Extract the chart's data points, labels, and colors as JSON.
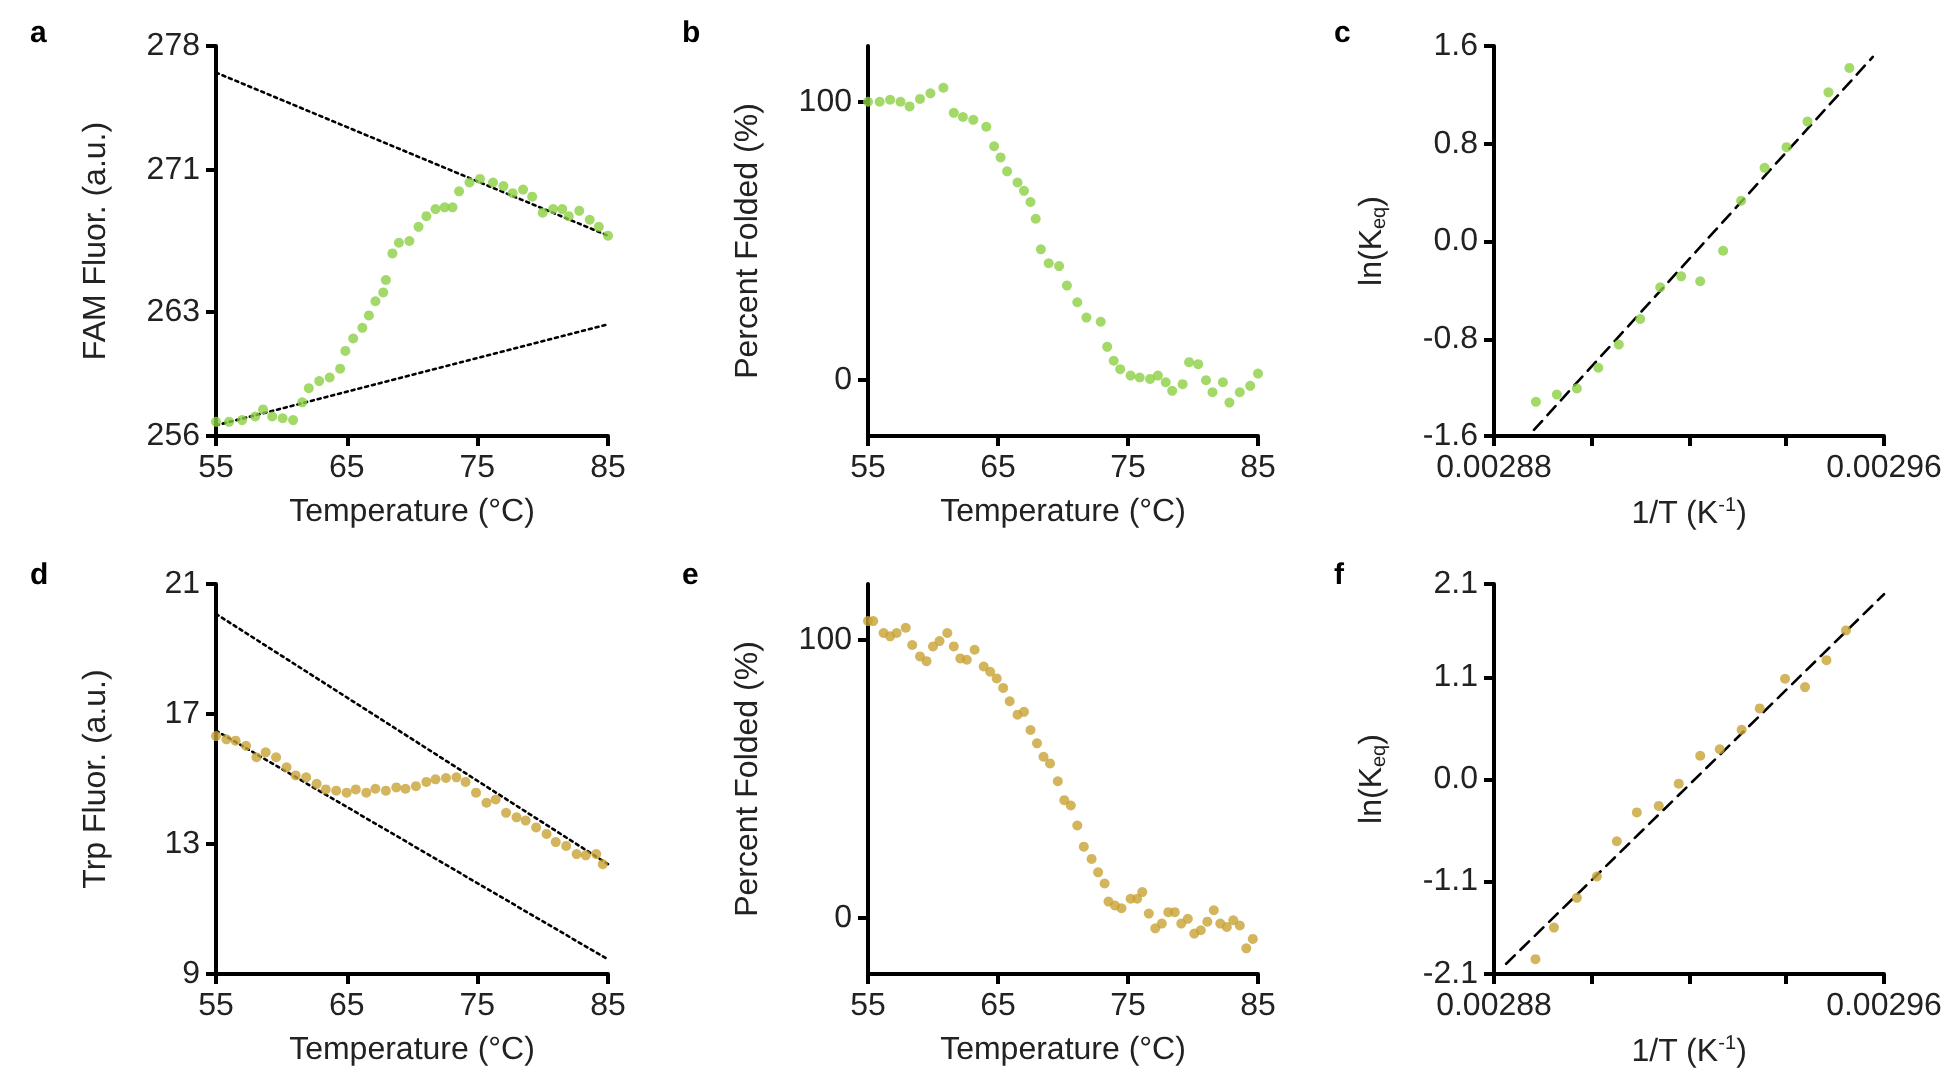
{
  "chart_data": [
    {
      "type": "scatter",
      "title": "a",
      "xlabel": "Temperature (°C)",
      "ylabel": "FAM Fluor. (a.u.)",
      "xlim": [
        55,
        85
      ],
      "ylim": [
        256,
        278
      ],
      "xticks": [
        55,
        65,
        75,
        85
      ],
      "yticks": [
        256,
        263,
        271,
        278
      ],
      "marker": "circle",
      "series": [
        {
          "color": "#8cd044",
          "x": [
            55,
            56,
            57,
            58,
            58.6,
            59.3,
            60.1,
            60.9,
            61.6,
            62.1,
            62.9,
            63.7,
            64.5,
            64.9,
            65.5,
            66.2,
            66.7,
            67.2,
            67.8,
            68,
            68.5,
            69,
            69.8,
            70.5,
            71.1,
            71.8,
            72.5,
            73.1,
            73.6,
            74.4,
            75.2,
            76.2,
            77,
            77.7,
            78.5,
            79.2,
            80,
            80.8,
            81.5,
            82,
            82.8,
            83.6,
            84.3,
            85
          ],
          "values": [
            256.8,
            256.8,
            256.9,
            257.1,
            257.5,
            257.1,
            257,
            256.9,
            257.9,
            258.7,
            259.1,
            259.3,
            259.8,
            260.8,
            261.5,
            262.1,
            262.8,
            263.6,
            264.1,
            264.8,
            266.3,
            266.9,
            267,
            267.8,
            268.4,
            268.8,
            268.9,
            268.9,
            269.8,
            270.3,
            270.5,
            270.3,
            270.1,
            269.7,
            269.9,
            269.5,
            268.6,
            268.8,
            268.8,
            268.4,
            268.7,
            268.2,
            267.8,
            267.3
          ]
        },
        {
          "type": "line",
          "marker": "none",
          "line_style": "dotted",
          "color": "#000000",
          "x": [
            55,
            85
          ],
          "values": [
            276.5,
            267.3
          ]
        },
        {
          "type": "line",
          "marker": "none",
          "line_style": "dotted",
          "color": "#000000",
          "x": [
            55,
            85
          ],
          "values": [
            256.6,
            262.3
          ]
        }
      ]
    },
    {
      "type": "scatter",
      "title": "b",
      "xlabel": "Temperature (°C)",
      "ylabel": "Percent Folded (%)",
      "xlim": [
        55,
        85
      ],
      "ylim": [
        -20,
        120
      ],
      "xticks": [
        55,
        65,
        75,
        85
      ],
      "yticks": [
        0,
        100
      ],
      "marker": "circle",
      "series": [
        {
          "color": "#8cd044",
          "x": [
            55,
            55.9,
            56.7,
            57.5,
            58.2,
            59,
            59.8,
            60.8,
            61.6,
            62.3,
            63.1,
            64.1,
            64.7,
            65.2,
            65.7,
            66.5,
            67,
            67.5,
            67.9,
            68.3,
            68.9,
            69.7,
            70.3,
            71.1,
            71.8,
            72.9,
            73.4,
            73.9,
            74.4,
            75.2,
            75.9,
            76.7,
            77.3,
            77.9,
            78.4,
            79.2,
            79.7,
            80.4,
            81,
            81.5,
            82.3,
            82.8,
            83.6,
            84.4,
            85
          ],
          "values": [
            100,
            100,
            100.7,
            100,
            98.3,
            101,
            103,
            105,
            96,
            94.5,
            93.5,
            91,
            84,
            80,
            75,
            71,
            68,
            64,
            58,
            47,
            42,
            41,
            34,
            28,
            22.5,
            21,
            12,
            7,
            4,
            1.7,
            1,
            0.5,
            1.7,
            -0.7,
            -3.8,
            -1.4,
            6.5,
            5.8,
            0,
            -4.3,
            -0.7,
            -8,
            -4.3,
            -2,
            2.4
          ]
        }
      ]
    },
    {
      "type": "scatter",
      "title": "c",
      "xlabel": "1/T (K$^{-1}$)",
      "ylabel": "ln(K$_{eq}$)",
      "xlim": [
        0.00288,
        0.00296
      ],
      "ylim": [
        -1.6,
        1.6
      ],
      "xticks": [
        0.00288,
        {
          "value": 0.0029,
          "label": null
        },
        {
          "value": 0.00292,
          "label": null
        },
        {
          "value": 0.00294,
          "label": null
        },
        0.00296
      ],
      "yticks": [
        -1.6,
        -0.8,
        {
          "value": 0,
          "label": "0.0"
        },
        0.8,
        1.6
      ],
      "marker": "circle",
      "series": [
        {
          "color": "#8cd044",
          "x": [
            0.0028886,
            0.0028929,
            0.002897,
            0.0029014,
            0.0029056,
            0.00291,
            0.0029141,
            0.0029184,
            0.0029223,
            0.002927,
            0.0029307,
            0.0029355,
            0.00294,
            0.0029443,
            0.0029486,
            0.0029529
          ],
          "values": [
            -1.32,
            -1.26,
            -1.21,
            -1.04,
            -0.85,
            -0.64,
            -0.38,
            -0.29,
            -0.33,
            -0.08,
            0.33,
            0.6,
            0.77,
            0.98,
            1.22,
            1.42
          ]
        },
        {
          "type": "line",
          "marker": "none",
          "line_style": "dashed",
          "color": "#000000",
          "x": [
            0.0028882,
            0.0029577
          ],
          "values": [
            -1.55,
            1.51
          ]
        }
      ]
    },
    {
      "type": "scatter",
      "title": "d",
      "xlabel": "Temperature (°C)",
      "ylabel": "Trp Fluor. (a.u.)",
      "xlim": [
        55,
        85
      ],
      "ylim": [
        9,
        21
      ],
      "xticks": [
        55,
        65,
        75,
        85
      ],
      "yticks": [
        9,
        13,
        17,
        21
      ],
      "marker": "circle",
      "series": [
        {
          "color": "#c8a235",
          "x": [
            55,
            55.8,
            56.5,
            57.3,
            58.1,
            58.8,
            59.6,
            60.4,
            61.1,
            61.9,
            62.7,
            63.4,
            64.2,
            65,
            65.7,
            66.5,
            67.2,
            68,
            68.8,
            69.5,
            70.3,
            71.1,
            71.8,
            72.6,
            73.4,
            74.1,
            74.9,
            75.7,
            76.4,
            77.2,
            78,
            78.7,
            79.5,
            80.3,
            81,
            81.8,
            82.6,
            83.3,
            84.1,
            84.6
          ],
          "values": [
            16.32,
            16.22,
            16.18,
            16.02,
            15.67,
            15.82,
            15.67,
            15.36,
            15.11,
            15.05,
            14.85,
            14.68,
            14.64,
            14.58,
            14.68,
            14.58,
            14.7,
            14.64,
            14.74,
            14.7,
            14.78,
            14.91,
            14.99,
            15.03,
            15.05,
            14.91,
            14.58,
            14.27,
            14.37,
            13.96,
            13.82,
            13.72,
            13.51,
            13.31,
            13.06,
            12.94,
            12.69,
            12.65,
            12.69,
            12.38
          ]
        },
        {
          "type": "line",
          "marker": "none",
          "line_style": "dotted",
          "color": "#000000",
          "x": [
            55,
            85
          ],
          "values": [
            20.08,
            12.38
          ]
        },
        {
          "type": "line",
          "marker": "none",
          "line_style": "dotted",
          "color": "#000000",
          "x": [
            55,
            85
          ],
          "values": [
            16.49,
            9.45
          ]
        }
      ]
    },
    {
      "type": "scatter",
      "title": "e",
      "xlabel": "Temperature (°C)",
      "ylabel": "Percent Folded (%)",
      "xlim": [
        55,
        85
      ],
      "ylim": [
        -20,
        120
      ],
      "xticks": [
        55,
        65,
        75,
        85
      ],
      "yticks": [
        0,
        100
      ],
      "marker": "circle",
      "series": [
        {
          "color": "#c8a235",
          "x": [
            55,
            55.4,
            56.2,
            56.7,
            57.2,
            57.9,
            58.4,
            59,
            59.5,
            60,
            60.5,
            61.1,
            61.6,
            62.1,
            62.6,
            63.2,
            63.9,
            64.4,
            64.9,
            65.4,
            65.9,
            66.5,
            67,
            67.5,
            68,
            68.5,
            69,
            69.6,
            70.1,
            70.6,
            71.1,
            71.6,
            72.2,
            72.7,
            73.2,
            73.5,
            74,
            74.5,
            75.2,
            75.7,
            76.1,
            76.6,
            77.1,
            77.6,
            78.1,
            78.6,
            79.1,
            79.6,
            80.1,
            80.6,
            81.1,
            81.6,
            82.1,
            82.6,
            83.1,
            83.6,
            84.1,
            84.6
          ],
          "values": [
            106.7,
            106.7,
            102.4,
            101.2,
            102.4,
            104.3,
            98.1,
            94,
            92.3,
            97.6,
            99.5,
            102.4,
            97.6,
            93.3,
            92.8,
            96.4,
            90.4,
            88.5,
            86.1,
            82.7,
            77.9,
            73.1,
            74.1,
            67.6,
            62.8,
            58,
            55.6,
            49.2,
            42.4,
            40.5,
            33.3,
            25.7,
            21.3,
            16.5,
            12.5,
            6,
            4.6,
            3.6,
            7,
            7,
            9.4,
            1.7,
            -3.6,
            -1.9,
            2.2,
            2.2,
            -1.9,
            -0.2,
            -5.5,
            -4.3,
            -1.2,
            2.9,
            -1.9,
            -3.1,
            -0.7,
            -2.6,
            -10.8,
            -7.4
          ]
        }
      ]
    },
    {
      "type": "scatter",
      "title": "f",
      "xlabel": "1/T (K$^{-1}$)",
      "ylabel": "ln(K$_{eq}$)",
      "xlim": [
        0.00288,
        0.00296
      ],
      "ylim": [
        -2.1,
        2.1
      ],
      "xticks": [
        0.00288,
        {
          "value": 0.0029,
          "label": null
        },
        {
          "value": 0.00292,
          "label": null
        },
        {
          "value": 0.00294,
          "label": null
        },
        0.00296
      ],
      "yticks": [
        -2.1,
        -1.1,
        {
          "value": 0,
          "label": "0.0"
        },
        1.1,
        2.1
      ],
      "marker": "circle",
      "series": [
        {
          "color": "#c8a235",
          "x": [
            0.0028885,
            0.0028923,
            0.002897,
            0.0029011,
            0.0029052,
            0.0029093,
            0.0029138,
            0.0029179,
            0.0029223,
            0.0029263,
            0.0029308,
            0.0029345,
            0.0029397,
            0.0029438,
            0.0029482,
            0.0029522
          ],
          "values": [
            -1.94,
            -1.6,
            -1.28,
            -1.05,
            -0.67,
            -0.36,
            -0.29,
            -0.05,
            0.25,
            0.32,
            0.53,
            0.76,
            1.08,
            0.99,
            1.28,
            1.6
          ]
        },
        {
          "type": "line",
          "marker": "none",
          "line_style": "dashed",
          "color": "#000000",
          "x": [
            0.0028825,
            0.00296
          ],
          "values": [
            -1.99,
            1.99
          ]
        }
      ]
    }
  ]
}
